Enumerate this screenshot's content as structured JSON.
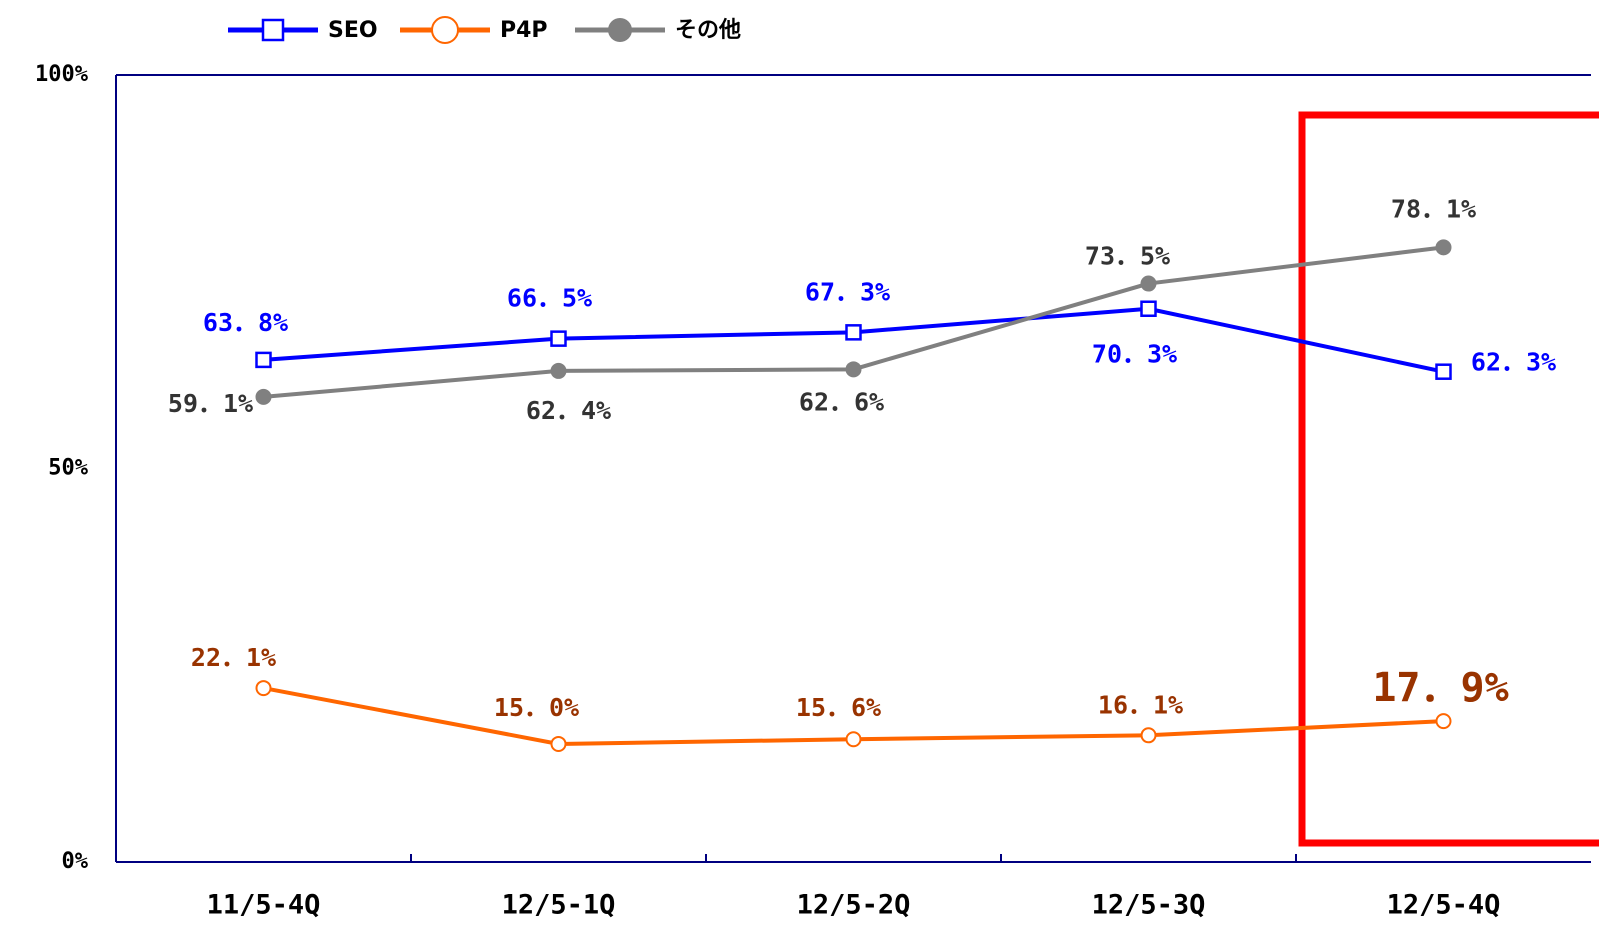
{
  "chart_data": {
    "type": "line",
    "categories": [
      "11/5-4Q",
      "12/5-1Q",
      "12/5-2Q",
      "12/5-3Q",
      "12/5-4Q"
    ],
    "series": [
      {
        "name": "SEO",
        "color": "#0000ff",
        "values": [
          63.8,
          66.5,
          67.3,
          70.3,
          62.3
        ],
        "value_labels": [
          "63．8%",
          "66．5%",
          "67．3%",
          "70．3%",
          "62．3%"
        ]
      },
      {
        "name": "P4P",
        "color": "#ff6600",
        "values": [
          22.1,
          15.0,
          15.6,
          16.1,
          17.9
        ],
        "value_labels": [
          "22．1%",
          "15．0%",
          "15．6%",
          "16．1%",
          "17．9%"
        ]
      },
      {
        "name": "その他",
        "color": "#808080",
        "values": [
          59.1,
          62.4,
          62.6,
          73.5,
          78.1
        ],
        "value_labels": [
          "59．1%",
          "62．4%",
          "62．6%",
          "73．5%",
          "78．1%"
        ]
      }
    ],
    "ylim": [
      0,
      100
    ],
    "yticks": [
      {
        "value": 0,
        "label": "0%"
      },
      {
        "value": 50,
        "label": "50%"
      },
      {
        "value": 100,
        "label": "100%"
      }
    ],
    "legend": "top-left"
  }
}
